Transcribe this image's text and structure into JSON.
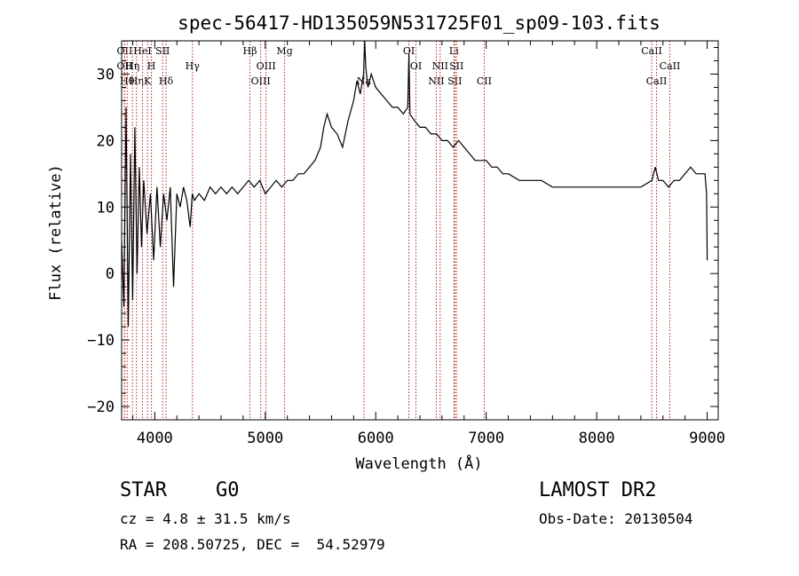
{
  "chart_data": {
    "type": "line",
    "title": "spec-56417-HD135059N531725F01_sp09-103.fits",
    "xlabel": "Wavelength (Å)",
    "ylabel": "Flux (relative)",
    "xlim": [
      3700,
      9100
    ],
    "ylim": [
      -22,
      35
    ],
    "x_ticks": [
      4000,
      5000,
      6000,
      7000,
      8000,
      9000
    ],
    "y_ticks": [
      -20,
      -10,
      0,
      10,
      20,
      30
    ],
    "grid": false,
    "line_color": "#000000",
    "marker_color": "#b22222",
    "series": [
      {
        "x": [
          3700,
          3720,
          3740,
          3760,
          3780,
          3800,
          3820,
          3840,
          3860,
          3880,
          3900,
          3930,
          3960,
          3990,
          4020,
          4050,
          4080,
          4110,
          4140,
          4170,
          4200,
          4230,
          4260,
          4290,
          4320,
          4340,
          4360,
          4400,
          4450,
          4500,
          4550,
          4600,
          4650,
          4700,
          4750,
          4800,
          4850,
          4900,
          4950,
          5000,
          5050,
          5100,
          5150,
          5200,
          5250,
          5300,
          5350,
          5400,
          5450,
          5500,
          5530,
          5560,
          5600,
          5650,
          5700,
          5750,
          5800,
          5830,
          5860,
          5890,
          5900,
          5910,
          5930,
          5960,
          6000,
          6050,
          6100,
          6150,
          6200,
          6250,
          6290,
          6300,
          6310,
          6350,
          6400,
          6450,
          6500,
          6550,
          6600,
          6650,
          6700,
          6750,
          6800,
          6850,
          6900,
          6950,
          7000,
          7050,
          7100,
          7150,
          7200,
          7300,
          7400,
          7500,
          7600,
          7700,
          7800,
          7900,
          8000,
          8100,
          8200,
          8300,
          8400,
          8500,
          8530,
          8560,
          8600,
          8650,
          8700,
          8750,
          8800,
          8850,
          8900,
          8950,
          8980,
          8995,
          9000
        ],
        "y": [
          5,
          -5,
          25,
          -8,
          18,
          -4,
          22,
          0,
          16,
          4,
          14,
          6,
          12,
          2,
          13,
          4,
          12,
          8,
          13,
          -2,
          12,
          10,
          13,
          11,
          7,
          12,
          11,
          12,
          11,
          13,
          12,
          13,
          12,
          13,
          12,
          13,
          14,
          13,
          14,
          12,
          13,
          14,
          13,
          14,
          14,
          15,
          15,
          16,
          17,
          19,
          22,
          24,
          22,
          21,
          19,
          23,
          26,
          29,
          27,
          30,
          35,
          31,
          28,
          30,
          28,
          27,
          26,
          25,
          25,
          24,
          25,
          33,
          24,
          23,
          22,
          22,
          21,
          21,
          20,
          20,
          19,
          20,
          19,
          18,
          17,
          17,
          17,
          16,
          16,
          15,
          15,
          14,
          14,
          14,
          13,
          13,
          13,
          13,
          13,
          13,
          13,
          13,
          13,
          14,
          16,
          14,
          14,
          13,
          14,
          14,
          15,
          16,
          15,
          15,
          15,
          12,
          2
        ]
      }
    ],
    "line_markers": [
      {
        "x": 3727,
        "label": "OII",
        "row": 0
      },
      {
        "x": 3727,
        "label": "OII",
        "row": 1
      },
      {
        "x": 3750,
        "label": "Hθ",
        "row": 2
      },
      {
        "x": 3798,
        "label": "Hη",
        "row": 1
      },
      {
        "x": 3835,
        "label": "Hη",
        "row": 2
      },
      {
        "x": 3889,
        "label": "HeI",
        "row": 0
      },
      {
        "x": 3934,
        "label": "K",
        "row": 2
      },
      {
        "x": 3970,
        "label": "H",
        "row": 1
      },
      {
        "x": 4072,
        "label": "SII",
        "row": 0
      },
      {
        "x": 4102,
        "label": "Hδ",
        "row": 2
      },
      {
        "x": 4341,
        "label": "Hγ",
        "row": 1
      },
      {
        "x": 4861,
        "label": "Hβ",
        "row": 0
      },
      {
        "x": 4959,
        "label": "OIII",
        "row": 2
      },
      {
        "x": 5007,
        "label": "OIII",
        "row": 1
      },
      {
        "x": 5175,
        "label": "Mg",
        "row": 0
      },
      {
        "x": 5894,
        "label": "Na",
        "row": 2
      },
      {
        "x": 6300,
        "label": "OI",
        "row": 0
      },
      {
        "x": 6364,
        "label": "OI",
        "row": 1
      },
      {
        "x": 6548,
        "label": "NII",
        "row": 2
      },
      {
        "x": 6583,
        "label": "NII",
        "row": 1
      },
      {
        "x": 6708,
        "label": "Li",
        "row": 0
      },
      {
        "x": 6716,
        "label": "SII",
        "row": 2
      },
      {
        "x": 6731,
        "label": "SII",
        "row": 1
      },
      {
        "x": 6982,
        "label": "CII",
        "row": 2
      },
      {
        "x": 8498,
        "label": "CaII",
        "row": 0
      },
      {
        "x": 8542,
        "label": "CaII",
        "row": 2
      },
      {
        "x": 8662,
        "label": "CaII",
        "row": 1
      }
    ]
  },
  "info": {
    "object_class": "STAR",
    "subclass": "G0",
    "survey": "LAMOST DR2",
    "redshift": "cz = 4.8 ± 31.5 km/s",
    "obs_date": "Obs-Date: 20130504",
    "coords": "RA = 208.50725, DEC =  54.52979"
  }
}
